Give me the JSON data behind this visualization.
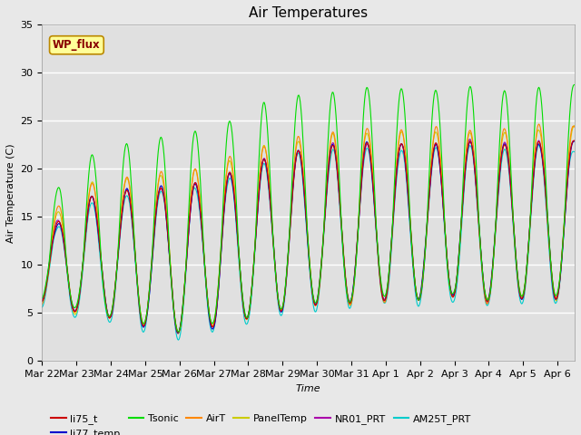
{
  "title": "Air Temperatures",
  "ylabel": "Air Temperature (C)",
  "xlabel": "Time",
  "ylim": [
    0,
    35
  ],
  "xtick_labels": [
    "Mar 22",
    "Mar 23",
    "Mar 24",
    "Mar 25",
    "Mar 26",
    "Mar 27",
    "Mar 28",
    "Mar 29",
    "Mar 30",
    "Mar 31",
    "Apr 1",
    "Apr 2",
    "Apr 3",
    "Apr 4",
    "Apr 5",
    "Apr 6"
  ],
  "series_colors": {
    "li75_t": "#cc0000",
    "li77_temp": "#0000cc",
    "Tsonic": "#00dd00",
    "AirT": "#ff8800",
    "PanelTemp": "#cccc00",
    "NR01_PRT": "#aa00aa",
    "AM25T_PRT": "#00cccc"
  },
  "wp_flux_label": "WP_flux",
  "wp_flux_box_color": "#ffff99",
  "wp_flux_text_color": "#880000",
  "background_color": "#e0e0e0",
  "grid_color": "#ffffff",
  "title_fontsize": 11,
  "axis_fontsize": 8,
  "legend_fontsize": 8,
  "fig_facecolor": "#e8e8e8"
}
